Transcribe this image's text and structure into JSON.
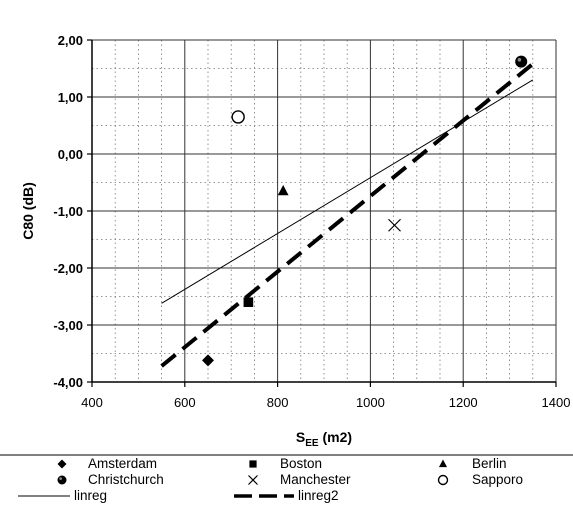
{
  "chart_data": {
    "type": "scatter",
    "xlabel_main": "S",
    "xlabel_sub": "EE",
    "xlabel_tail": " (m2)",
    "ylabel": "C80 (dB)",
    "xlim": [
      400,
      1400
    ],
    "ylim": [
      -4,
      2
    ],
    "x_ticks": [
      400,
      600,
      800,
      1000,
      1200,
      1400
    ],
    "x_tick_labels": [
      "400",
      "600",
      "800",
      "1000",
      "1200",
      "1400"
    ],
    "y_ticks": [
      2,
      1,
      0,
      -1,
      -2,
      -3,
      -4
    ],
    "y_tick_labels": [
      "2,00",
      "1,00",
      "0,00",
      "-1,00",
      "-2,00",
      "-3,00",
      "-4,00"
    ],
    "grid": true,
    "legend_position": "bottom",
    "points": [
      {
        "name": "Amsterdam",
        "marker": "diamond",
        "x": 650,
        "y": -3.62
      },
      {
        "name": "Boston",
        "marker": "square",
        "x": 737,
        "y": -2.6
      },
      {
        "name": "Berlin",
        "marker": "triangle",
        "x": 812,
        "y": -0.65
      },
      {
        "name": "Christchurch",
        "marker": "circle-dot",
        "x": 1325,
        "y": 1.62
      },
      {
        "name": "Manchester",
        "marker": "cross",
        "x": 1052,
        "y": -1.25
      },
      {
        "name": "Sapporo",
        "marker": "open-circle",
        "x": 715,
        "y": 0.65
      }
    ],
    "lines": [
      {
        "name": "linreg",
        "style": "thin-solid",
        "x": [
          550,
          1350
        ],
        "y": [
          -2.62,
          1.3
        ]
      },
      {
        "name": "linreg2",
        "style": "thick-dashed",
        "x": [
          550,
          1350
        ],
        "y": [
          -3.72,
          1.58
        ]
      }
    ],
    "legend": [
      {
        "label": "Amsterdam",
        "marker": "diamond"
      },
      {
        "label": "Boston",
        "marker": "square"
      },
      {
        "label": "Berlin",
        "marker": "triangle"
      },
      {
        "label": "Christchurch",
        "marker": "circle-dot"
      },
      {
        "label": "Manchester",
        "marker": "cross"
      },
      {
        "label": "Sapporo",
        "marker": "open-circle"
      },
      {
        "label": "linreg",
        "marker": "thin-line"
      },
      {
        "label": "linreg2",
        "marker": "dashed-line"
      }
    ]
  }
}
